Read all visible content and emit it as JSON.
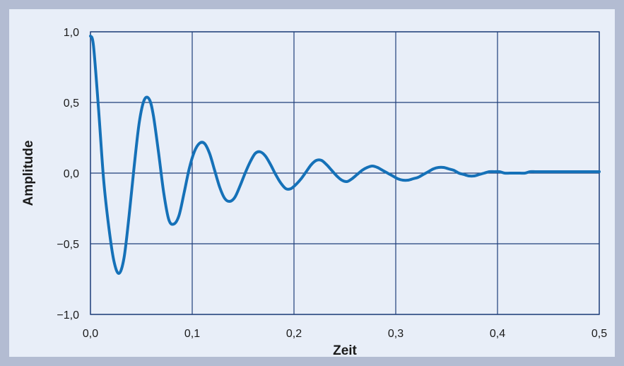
{
  "chart_data": {
    "type": "line",
    "title": "",
    "xlabel": "Zeit",
    "ylabel": "Amplitude",
    "xlim": [
      0.0,
      0.5
    ],
    "ylim": [
      -1.0,
      1.0
    ],
    "x_ticks": [
      "0,0",
      "0,1",
      "0,2",
      "0,3",
      "0,4",
      "0,5"
    ],
    "y_ticks": [
      "1,0",
      "0,5",
      "0,0",
      "−0,5",
      "−1,0"
    ],
    "grid": true,
    "legend": "none",
    "series": [
      {
        "color": "#1571b8",
        "x": [
          0.0,
          0.003,
          0.008,
          0.013,
          0.018,
          0.023,
          0.028,
          0.033,
          0.038,
          0.043,
          0.048,
          0.053,
          0.058,
          0.062,
          0.067,
          0.072,
          0.077,
          0.082,
          0.087,
          0.092,
          0.097,
          0.102,
          0.107,
          0.112,
          0.117,
          0.122,
          0.127,
          0.132,
          0.137,
          0.142,
          0.147,
          0.152,
          0.157,
          0.162,
          0.167,
          0.172,
          0.177,
          0.182,
          0.187,
          0.192,
          0.197,
          0.202,
          0.207,
          0.212,
          0.217,
          0.222,
          0.227,
          0.232,
          0.237,
          0.242,
          0.247,
          0.252,
          0.257,
          0.262,
          0.267,
          0.272,
          0.277,
          0.282,
          0.287,
          0.292,
          0.297,
          0.302,
          0.307,
          0.312,
          0.317,
          0.322,
          0.327,
          0.332,
          0.337,
          0.342,
          0.347,
          0.352,
          0.357,
          0.362,
          0.367,
          0.372,
          0.377,
          0.382,
          0.387,
          0.392,
          0.397,
          0.402,
          0.407,
          0.412,
          0.417,
          0.422,
          0.427,
          0.432,
          0.437,
          0.442,
          0.447,
          0.452,
          0.457,
          0.462,
          0.467,
          0.472,
          0.477,
          0.482,
          0.487,
          0.492,
          0.497,
          0.5
        ],
        "y": [
          0.97,
          0.9,
          0.45,
          -0.05,
          -0.38,
          -0.62,
          -0.71,
          -0.6,
          -0.3,
          0.05,
          0.36,
          0.52,
          0.52,
          0.4,
          0.14,
          -0.14,
          -0.33,
          -0.36,
          -0.3,
          -0.14,
          0.03,
          0.15,
          0.21,
          0.21,
          0.14,
          0.02,
          -0.1,
          -0.18,
          -0.2,
          -0.17,
          -0.09,
          0.0,
          0.08,
          0.14,
          0.15,
          0.12,
          0.06,
          -0.01,
          -0.07,
          -0.11,
          -0.11,
          -0.08,
          -0.04,
          0.01,
          0.06,
          0.09,
          0.09,
          0.06,
          0.02,
          -0.02,
          -0.05,
          -0.06,
          -0.04,
          -0.01,
          0.02,
          0.04,
          0.05,
          0.04,
          0.02,
          0.0,
          -0.02,
          -0.04,
          -0.05,
          -0.05,
          -0.04,
          -0.03,
          -0.01,
          0.01,
          0.03,
          0.04,
          0.04,
          0.03,
          0.02,
          0.0,
          -0.01,
          -0.02,
          -0.02,
          -0.01,
          0.0,
          0.01,
          0.01,
          0.01,
          0.0,
          0.0,
          0.0,
          0.0,
          0.0,
          0.01,
          0.01,
          0.01,
          0.01,
          0.01,
          0.01,
          0.01,
          0.01,
          0.01,
          0.01,
          0.01,
          0.01,
          0.01,
          0.01,
          0.01
        ]
      }
    ]
  }
}
